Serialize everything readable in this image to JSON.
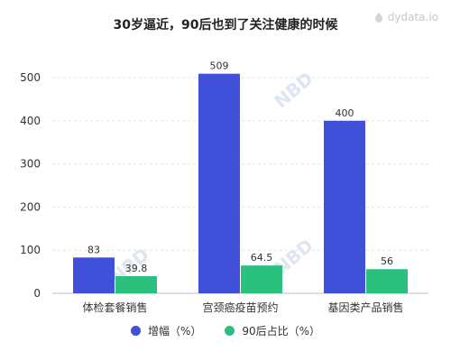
{
  "chart_data": {
    "type": "bar",
    "title": "30岁逼近，90后也到了关注健康的时候",
    "categories": [
      "体检套餐销售",
      "宫颈癌疫苗预约",
      "基因类产品销售"
    ],
    "series": [
      {
        "name": "增幅（%）",
        "values": [
          83,
          509,
          400
        ],
        "labels": [
          "83",
          "509",
          "400"
        ],
        "color": "#4050d8"
      },
      {
        "name": "90后占比（%）",
        "values": [
          39.8,
          64.5,
          56
        ],
        "labels": [
          "39.8",
          "64.5",
          "56"
        ],
        "color": "#2cc07f"
      }
    ],
    "yticks": [
      "0",
      "100",
      "200",
      "300",
      "400",
      "500"
    ],
    "ylim": [
      0,
      540
    ],
    "grid": true,
    "legend": "bottom",
    "xlabel": "",
    "ylabel": ""
  },
  "watermark": {
    "text": "dydata.io",
    "icon": "dydata-logo-icon"
  },
  "decor": {
    "stamp_text": "NBD"
  }
}
